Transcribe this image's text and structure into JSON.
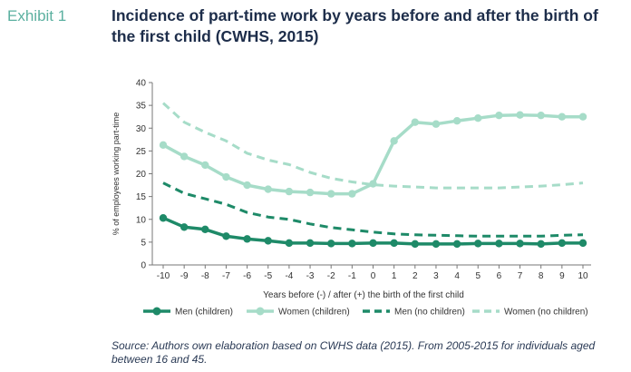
{
  "header": {
    "exhibit_label": "Exhibit 1",
    "title": "Incidence of part-time work by years before and after the birth of the first child (CWHS, 2015)"
  },
  "chart_data": {
    "type": "line",
    "x": [
      -10,
      -9,
      -8,
      -7,
      -6,
      -5,
      -4,
      -3,
      -2,
      -1,
      0,
      1,
      2,
      3,
      4,
      5,
      6,
      7,
      8,
      9,
      10
    ],
    "x_tick_labels": [
      "-10",
      "-9",
      "-8",
      "-7",
      "-6",
      "-5",
      "-4",
      "-3",
      "-2",
      "-1",
      "0",
      "1",
      "2",
      "3",
      "4",
      "5",
      "6",
      "7",
      "8",
      "9",
      "10"
    ],
    "xlabel": "Years before (-) / after (+) the birth of the first child",
    "ylabel": "% of employees working part-time",
    "ylim": [
      0,
      40
    ],
    "y_ticks": [
      0,
      5,
      10,
      15,
      20,
      25,
      30,
      35,
      40
    ],
    "grid": false,
    "legend_position": "bottom",
    "series": [
      {
        "name": "Men (children)",
        "color": "#1e8a68",
        "style": "solid",
        "markers": true,
        "values": [
          10.3,
          8.3,
          7.8,
          6.3,
          5.7,
          5.3,
          4.8,
          4.8,
          4.7,
          4.7,
          4.8,
          4.8,
          4.6,
          4.6,
          4.6,
          4.7,
          4.7,
          4.7,
          4.6,
          4.8,
          4.8
        ]
      },
      {
        "name": "Women (children)",
        "color": "#a6dcc8",
        "style": "solid",
        "markers": true,
        "values": [
          26.3,
          23.8,
          21.9,
          19.3,
          17.5,
          16.6,
          16.1,
          15.9,
          15.6,
          15.6,
          17.8,
          27.2,
          31.3,
          30.9,
          31.6,
          32.2,
          32.8,
          32.9,
          32.8,
          32.5,
          32.5
        ]
      },
      {
        "name": "Men (no children)",
        "color": "#1e8a68",
        "style": "dashed",
        "markers": false,
        "values": [
          18.0,
          15.7,
          14.5,
          13.3,
          11.5,
          10.5,
          10.0,
          9.0,
          8.2,
          7.7,
          7.2,
          6.8,
          6.6,
          6.5,
          6.4,
          6.3,
          6.3,
          6.3,
          6.3,
          6.5,
          6.6
        ]
      },
      {
        "name": "Women (no children)",
        "color": "#a6dcc8",
        "style": "dashed",
        "markers": false,
        "values": [
          35.5,
          31.3,
          29.1,
          27.2,
          24.5,
          23.0,
          22.0,
          20.3,
          19.0,
          18.2,
          17.6,
          17.3,
          17.1,
          16.9,
          16.9,
          16.9,
          16.9,
          17.1,
          17.3,
          17.6,
          18.0
        ]
      }
    ]
  },
  "footer": {
    "source": "Source: Authors own elaboration based on CWHS data (2015). From 2005-2015 for individuals aged between 16 and 45."
  }
}
